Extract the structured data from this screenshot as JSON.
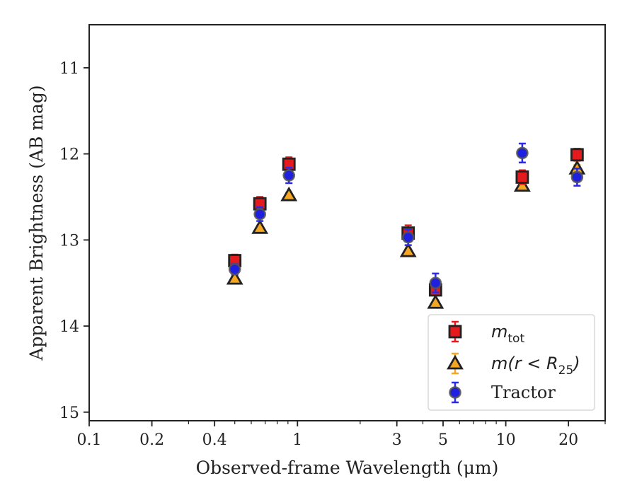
{
  "chart_data": {
    "type": "scatter",
    "xlabel": "Observed-frame Wavelength (μm)",
    "ylabel": "Apparent Brightness (AB mag)",
    "x_scale": "log",
    "xlim": [
      0.1,
      30
    ],
    "ylim": [
      15.1,
      10.5
    ],
    "y_inverted": true,
    "x_ticks": [
      {
        "value": 0.1,
        "label": "0.1"
      },
      {
        "value": 0.2,
        "label": "0.2"
      },
      {
        "value": 0.4,
        "label": "0.4"
      },
      {
        "value": 1,
        "label": "1"
      },
      {
        "value": 3,
        "label": "3"
      },
      {
        "value": 5,
        "label": "5"
      },
      {
        "value": 10,
        "label": "10"
      },
      {
        "value": 20,
        "label": "20"
      }
    ],
    "y_ticks": [
      {
        "value": 11,
        "label": "11"
      },
      {
        "value": 12,
        "label": "12"
      },
      {
        "value": 13,
        "label": "13"
      },
      {
        "value": 14,
        "label": "14"
      },
      {
        "value": 15,
        "label": "15"
      }
    ],
    "grid": false,
    "legend_position": "bottom-right",
    "series": [
      {
        "name": "m_tot",
        "legend_label": {
          "base": "m",
          "sub": "tot"
        },
        "marker": "square",
        "face_color": "#e41a1c",
        "edge_color": "#222222",
        "err_color": "#e41a1c",
        "points": [
          {
            "x": 0.5,
            "y": 13.24,
            "err": 0.07
          },
          {
            "x": 0.66,
            "y": 12.58,
            "err": 0.08
          },
          {
            "x": 0.91,
            "y": 12.12,
            "err": 0.08
          },
          {
            "x": 3.4,
            "y": 12.92,
            "err": 0.09
          },
          {
            "x": 4.6,
            "y": 13.58,
            "err": 0.06
          },
          {
            "x": 12.0,
            "y": 12.27,
            "err": 0.08
          },
          {
            "x": 22.0,
            "y": 12.01,
            "err": 0.07
          }
        ]
      },
      {
        "name": "m(r<R_25)",
        "legend_label": {
          "base": "m(r < R",
          "sub": "25",
          "tail": ")"
        },
        "marker": "triangle",
        "face_color": "#f5a623",
        "edge_color": "#222222",
        "err_color": "#f5a623",
        "points": [
          {
            "x": 0.5,
            "y": 13.45,
            "err": 0.03
          },
          {
            "x": 0.66,
            "y": 12.86,
            "err": 0.03
          },
          {
            "x": 0.91,
            "y": 12.48,
            "err": 0.03
          },
          {
            "x": 3.4,
            "y": 13.13,
            "err": 0.03
          },
          {
            "x": 4.6,
            "y": 13.73,
            "err": 0.03
          },
          {
            "x": 12.0,
            "y": 12.37,
            "err": 0.03
          },
          {
            "x": 22.0,
            "y": 12.17,
            "err": 0.04
          }
        ]
      },
      {
        "name": "Tractor",
        "legend_label": {
          "base": "Tractor"
        },
        "marker": "circle",
        "face_color": "#1f1fe0",
        "edge_color": "#555555",
        "err_color": "#2a2ae8",
        "points": [
          {
            "x": 0.5,
            "y": 13.34,
            "err": 0.06
          },
          {
            "x": 0.66,
            "y": 12.7,
            "err": 0.08
          },
          {
            "x": 0.91,
            "y": 12.25,
            "err": 0.09
          },
          {
            "x": 3.4,
            "y": 12.97,
            "err": 0.09
          },
          {
            "x": 4.6,
            "y": 13.5,
            "err": 0.11
          },
          {
            "x": 12.0,
            "y": 11.99,
            "err": 0.11
          },
          {
            "x": 22.0,
            "y": 12.27,
            "err": 0.1
          }
        ]
      }
    ]
  }
}
